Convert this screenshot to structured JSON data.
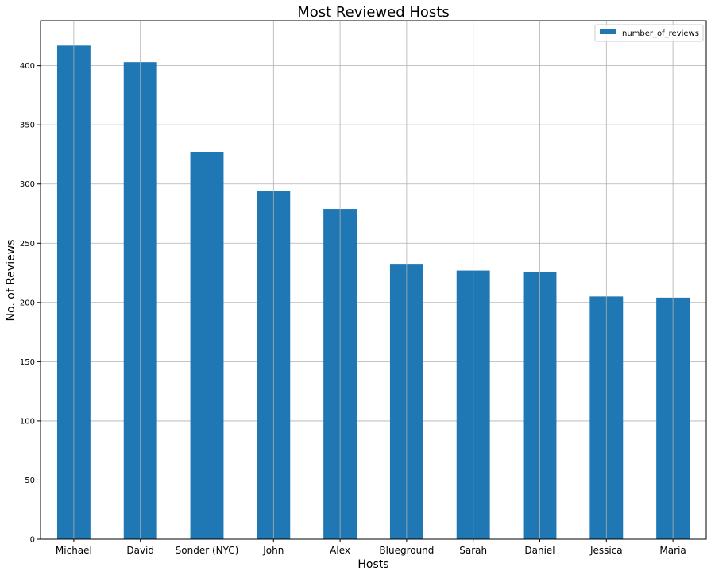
{
  "chart_data": {
    "type": "bar",
    "title": "Most Reviewed Hosts",
    "xlabel": "Hosts",
    "ylabel": "No. of Reviews",
    "categories": [
      "Michael",
      "David",
      "Sonder (NYC)",
      "John",
      "Alex",
      "Blueground",
      "Sarah",
      "Daniel",
      "Jessica",
      "Maria"
    ],
    "series": [
      {
        "name": "number_of_reviews",
        "values": [
          417,
          403,
          327,
          294,
          279,
          232,
          227,
          226,
          205,
          204
        ],
        "color": "#1f77b4"
      }
    ],
    "ylim": [
      0,
      438
    ],
    "yticks": [
      0,
      50,
      100,
      150,
      200,
      250,
      300,
      350,
      400
    ],
    "grid": true,
    "legend_position": "top-right"
  }
}
